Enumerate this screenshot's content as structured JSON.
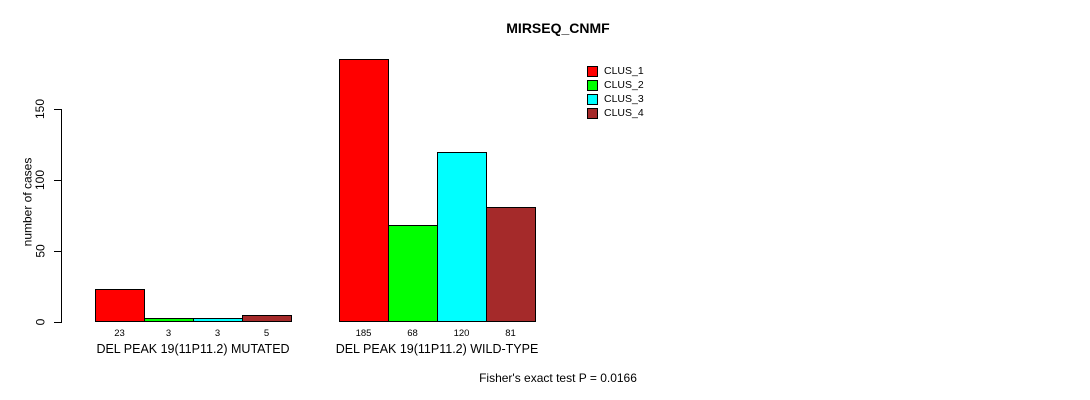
{
  "title": "MIRSEQ_CNMF",
  "footer": "Fisher's exact test P = 0.0166",
  "chart_data": {
    "type": "bar",
    "title": "MIRSEQ_CNMF",
    "subtitle": "",
    "xlabel": "",
    "ylabel": "number of cases",
    "categories": [
      "DEL PEAK 19(11P11.2) MUTATED",
      "DEL PEAK 19(11P11.2) WILD-TYPE"
    ],
    "series": [
      {
        "name": "CLUS_1",
        "color": "#FF0000",
        "values": [
          23,
          185
        ]
      },
      {
        "name": "CLUS_2",
        "color": "#00FF00",
        "values": [
          3,
          68
        ]
      },
      {
        "name": "CLUS_3",
        "color": "#00FFFF",
        "values": [
          3,
          120
        ]
      },
      {
        "name": "CLUS_4",
        "color": "#A52A2A",
        "values": [
          5,
          81
        ]
      }
    ],
    "bar_value_labels": {
      "DEL PEAK 19(11P11.2) MUTATED": [
        23,
        3,
        3,
        5
      ],
      "DEL PEAK 19(11P11.2) WILD-TYPE": [
        185,
        68,
        120,
        81
      ]
    },
    "yticks": [
      0,
      50,
      100,
      150
    ],
    "ylim": [
      0,
      190
    ],
    "grid": false,
    "legend_position": "top-right",
    "legend_entries": [
      "CLUS_1",
      "CLUS_2",
      "CLUS_3",
      "CLUS_4"
    ],
    "annotation": "Fisher's exact test P = 0.0166",
    "text_color": "#000000",
    "bar_border_color": "#000000",
    "background_color": "#FFFFFF"
  }
}
